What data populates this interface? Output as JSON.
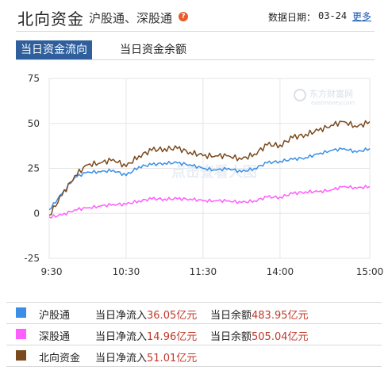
{
  "header": {
    "title": "北向资金",
    "subtitle": "沪股通、深股通",
    "help_glyph": "?",
    "date_label": "数据日期：",
    "date_value": "03-24",
    "more": "更多"
  },
  "tabs": [
    {
      "label": "当日资金流向",
      "active": true
    },
    {
      "label": "当日资金余额",
      "active": false
    }
  ],
  "colors": {
    "hgt": "#3a8ee6",
    "sgt": "#ff5dff",
    "north": "#7a4a1e",
    "accent": "#2f5f9c",
    "value_red": "#c0392b"
  },
  "chart_data": {
    "type": "line",
    "x_ticks": [
      "9:30",
      "10:30",
      "11:30",
      "14:00",
      "15:00"
    ],
    "ylim": [
      -25,
      75
    ],
    "y_ticks": [
      "75",
      "50",
      "25",
      "0",
      "-25"
    ],
    "grid": true,
    "watermark": "点击查看大图",
    "logo_text": "东方财富网",
    "logo_sub": "eastmoney.com",
    "x": [
      "9:30",
      "9:40",
      "9:50",
      "10:00",
      "10:10",
      "10:20",
      "10:30",
      "10:40",
      "10:50",
      "11:00",
      "11:10",
      "11:20",
      "11:30",
      "13:10",
      "13:20",
      "13:30",
      "13:40",
      "13:50",
      "14:00",
      "14:10",
      "14:20",
      "14:30",
      "14:40",
      "14:50",
      "14:55",
      "15:00"
    ],
    "series": [
      {
        "name": "沪股通",
        "color": "#3a8ee6",
        "values": [
          2,
          11,
          20,
          23,
          23,
          24,
          21,
          26,
          27,
          28,
          28,
          27,
          25,
          24,
          25,
          23,
          25,
          28,
          29,
          30,
          31,
          33,
          35,
          36,
          34,
          36.05
        ]
      },
      {
        "name": "深股通",
        "color": "#ff5dff",
        "values": [
          -2,
          -1,
          2,
          3,
          4,
          5,
          5,
          7,
          8,
          8,
          8,
          8,
          7,
          7,
          7,
          6,
          7,
          9,
          9,
          11,
          12,
          12,
          13,
          15,
          14,
          14.96
        ]
      },
      {
        "name": "北向资金",
        "color": "#7a4a1e",
        "values": [
          -1,
          10,
          21,
          27,
          28,
          30,
          26,
          32,
          35,
          36,
          36,
          34,
          32,
          32,
          32,
          30,
          33,
          38,
          38,
          42,
          44,
          46,
          49,
          51,
          48,
          51.01
        ]
      }
    ]
  },
  "legend": [
    {
      "name": "沪股通",
      "in_label": "当日净流入",
      "in_value": "36.05",
      "in_unit": "亿元",
      "bal_label": "当日余额",
      "bal_value": "483.95",
      "bal_unit": "亿元"
    },
    {
      "name": "深股通",
      "in_label": "当日净流入",
      "in_value": "14.96",
      "in_unit": "亿元",
      "bal_label": "当日余额",
      "bal_value": "505.04",
      "bal_unit": "亿元"
    },
    {
      "name": "北向资金",
      "in_label": "当日净流入",
      "in_value": "51.01",
      "in_unit": "亿元",
      "bal_label": "",
      "bal_value": "",
      "bal_unit": ""
    }
  ]
}
